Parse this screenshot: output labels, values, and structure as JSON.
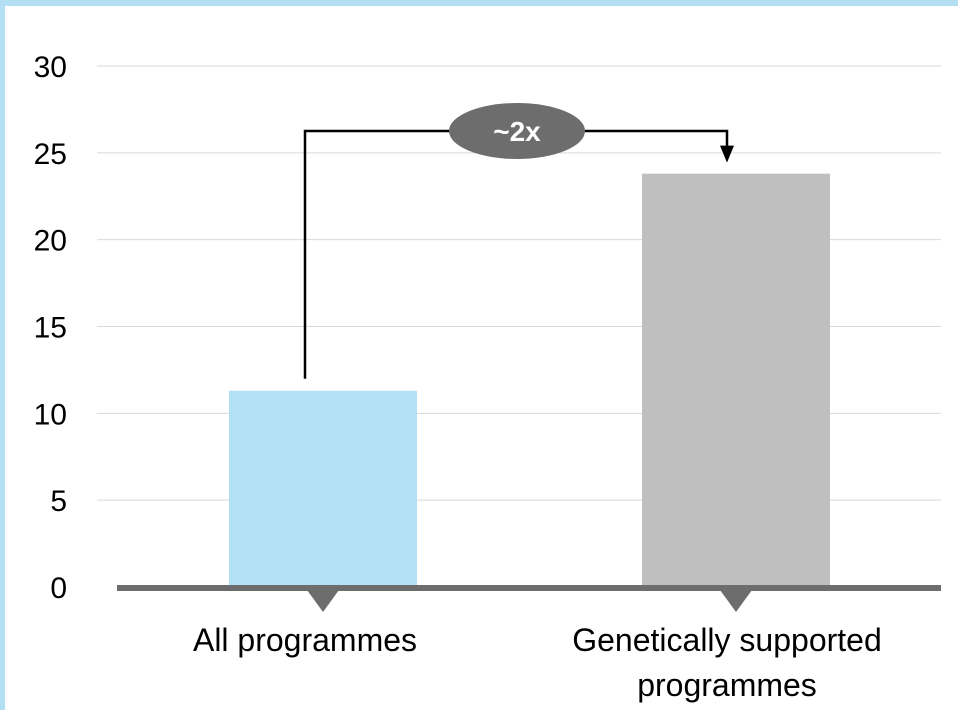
{
  "chart_data": {
    "type": "bar",
    "categories": [
      "All programmes",
      "Genetically supported programmes"
    ],
    "category_lines": [
      [
        "All programmes"
      ],
      [
        "Genetically supported",
        "programmes"
      ]
    ],
    "values": [
      11.3,
      23.8
    ],
    "colors": [
      "#b3e0f5",
      "#bfbfbf"
    ],
    "ylim": [
      0,
      30
    ],
    "yticks": [
      0,
      5,
      10,
      15,
      20,
      25,
      30
    ],
    "grid": true,
    "grid_color": "#d9d9d9",
    "axis_color": "#6d6d6d",
    "annotation": {
      "text": "~2x",
      "from": "All programmes",
      "to": "Genetically supported programmes",
      "color": "#6d6d6d"
    }
  }
}
